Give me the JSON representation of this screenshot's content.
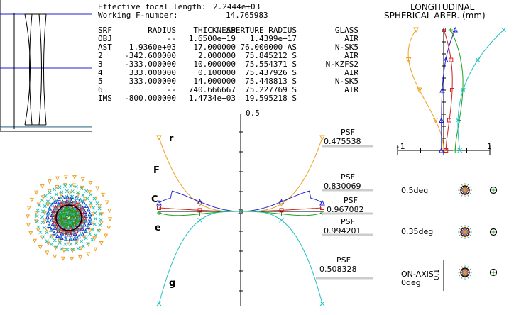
{
  "header": {
    "efl_label": "Effective focal length:",
    "efl_value": "2.2444e+03",
    "fno_label": "Working F-number:",
    "fno_value": "14.765983"
  },
  "lens_table": {
    "columns": [
      "SRF",
      "RADIUS",
      "THICKNESS",
      "APERTURE RADIUS",
      "GLASS"
    ],
    "rows": [
      [
        "OBJ",
        "--",
        "1.6500e+19",
        "1.4399e+17",
        "AIR"
      ],
      [
        "AST",
        "1.9360e+03",
        "17.000000",
        "76.000000 AS",
        "N-SK5"
      ],
      [
        "2",
        "-342.600000",
        "2.000000",
        "75.845212 S",
        "AIR"
      ],
      [
        "3",
        "-333.000000",
        "10.000000",
        "75.554371 S",
        "N-KZFS2"
      ],
      [
        "4",
        "333.000000",
        "0.100000",
        "75.437926 S",
        "AIR"
      ],
      [
        "5",
        "333.000000",
        "14.000000",
        "75.448813 S",
        "N-SK5"
      ],
      [
        "6",
        "--",
        "740.666667",
        "75.227769 S",
        "AIR"
      ],
      [
        "IMS",
        "-800.000000",
        "1.4734e+03",
        "19.595218 S",
        ""
      ]
    ]
  },
  "ray_fan": {
    "scale_label": "0.5",
    "curves": [
      {
        "label": "r",
        "color": "#f0a020",
        "marker": "triangle-down",
        "psf_label": "PSF",
        "psf_value": "0.475538"
      },
      {
        "label": "F",
        "color": "#2020d0",
        "marker": "triangle-up",
        "psf_label": "PSF",
        "psf_value": "0.830069"
      },
      {
        "label": "C",
        "color": "#d02020",
        "marker": "square",
        "psf_label": "PSF",
        "psf_value": "0.967082"
      },
      {
        "label": "e",
        "color": "#20a020",
        "marker": "plus",
        "psf_label": "PSF",
        "psf_value": "0.994201"
      },
      {
        "label": "g",
        "color": "#20c0c0",
        "marker": "x",
        "psf_label": "PSF",
        "psf_value": "0.508328"
      }
    ]
  },
  "longitudinal": {
    "title_line1": "LONGITUDINAL",
    "title_line2": "SPHERICAL ABER. (mm)",
    "tick_min": "-1",
    "tick_max": "1"
  },
  "spots": {
    "fields": [
      {
        "label": "0.5deg"
      },
      {
        "label": "0.35deg"
      },
      {
        "label": "ON-AXIS\n0deg"
      }
    ],
    "scale_label": "0.1"
  }
}
